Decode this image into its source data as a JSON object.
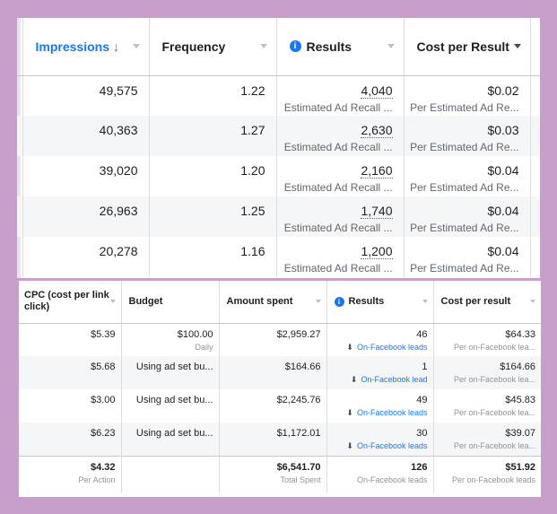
{
  "top": {
    "columns": {
      "impressions": "Impressions ↓",
      "frequency": "Frequency",
      "results": "Results",
      "cost": "Cost per Result"
    },
    "rows": [
      {
        "impressions": "49,575",
        "frequency": "1.22",
        "results": "4,040",
        "results_sub": "Estimated Ad Recall ...",
        "cost": "$0.02",
        "cost_sub": "Per Estimated Ad Re..."
      },
      {
        "impressions": "40,363",
        "frequency": "1.27",
        "results": "2,630",
        "results_sub": "Estimated Ad Recall ...",
        "cost": "$0.03",
        "cost_sub": "Per Estimated Ad Re..."
      },
      {
        "impressions": "39,020",
        "frequency": "1.20",
        "results": "2,160",
        "results_sub": "Estimated Ad Recall ...",
        "cost": "$0.04",
        "cost_sub": "Per Estimated Ad Re..."
      },
      {
        "impressions": "26,963",
        "frequency": "1.25",
        "results": "1,740",
        "results_sub": "Estimated Ad Recall ...",
        "cost": "$0.04",
        "cost_sub": "Per Estimated Ad Re..."
      },
      {
        "impressions": "20,278",
        "frequency": "1.16",
        "results": "1,200",
        "results_sub": "Estimated Ad Recall ...",
        "cost": "$0.04",
        "cost_sub": "Per Estimated Ad Re..."
      }
    ]
  },
  "bottom": {
    "columns": {
      "cpc": "CPC (cost per link click)",
      "budget": "Budget",
      "spent": "Amount spent",
      "results": "Results",
      "cost": "Cost per result"
    },
    "rows": [
      {
        "cpc": "$5.39",
        "budget": "$100.00",
        "budget_sub": "Daily",
        "spent": "$2,959.27",
        "results": "46",
        "results_sub": "On-Facebook leads",
        "cost": "$64.33",
        "cost_sub": "Per on-Facebook lea..."
      },
      {
        "cpc": "$5.68",
        "budget": "Using ad set bu...",
        "budget_sub": "",
        "spent": "$164.66",
        "results": "1",
        "results_sub": "On-Facebook lead",
        "cost": "$164.66",
        "cost_sub": "Per on-Facebook lea..."
      },
      {
        "cpc": "$3.00",
        "budget": "Using ad set bu...",
        "budget_sub": "",
        "spent": "$2,245.76",
        "results": "49",
        "results_sub": "On-Facebook leads",
        "cost": "$45.83",
        "cost_sub": "Per on-Facebook lea..."
      },
      {
        "cpc": "$6.23",
        "budget": "Using ad set bu...",
        "budget_sub": "",
        "spent": "$1,172.01",
        "results": "30",
        "results_sub": "On-Facebook leads",
        "cost": "$39.07",
        "cost_sub": "Per on-Facebook lea..."
      }
    ],
    "totals": {
      "cpc": "$4.32",
      "cpc_sub": "Per Action",
      "spent": "$6,541.70",
      "spent_sub": "Total Spent",
      "results": "126",
      "results_sub": "On-Facebook leads",
      "cost": "$51.92",
      "cost_sub": "Per on-Facebook leads"
    }
  },
  "colors": {
    "accent": "#1877f2",
    "background": "#c79fcb"
  }
}
